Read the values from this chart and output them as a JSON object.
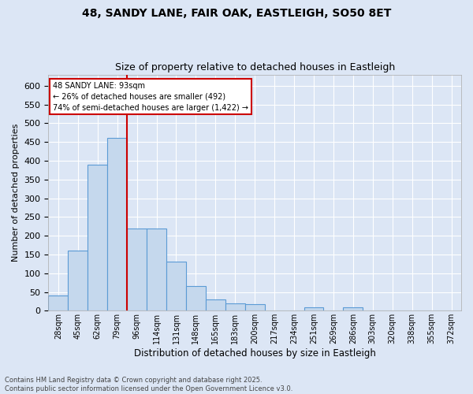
{
  "title1": "48, SANDY LANE, FAIR OAK, EASTLEIGH, SO50 8ET",
  "title2": "Size of property relative to detached houses in Eastleigh",
  "xlabel": "Distribution of detached houses by size in Eastleigh",
  "ylabel": "Number of detached properties",
  "categories": [
    "28sqm",
    "45sqm",
    "62sqm",
    "79sqm",
    "96sqm",
    "114sqm",
    "131sqm",
    "148sqm",
    "165sqm",
    "183sqm",
    "200sqm",
    "217sqm",
    "234sqm",
    "251sqm",
    "269sqm",
    "286sqm",
    "303sqm",
    "320sqm",
    "338sqm",
    "355sqm",
    "372sqm"
  ],
  "values": [
    40,
    160,
    390,
    460,
    220,
    220,
    130,
    65,
    30,
    20,
    18,
    0,
    0,
    8,
    0,
    8,
    0,
    0,
    0,
    0,
    0
  ],
  "bar_color": "#c5d8ed",
  "bar_edge_color": "#5b9bd5",
  "bg_color": "#dce6f5",
  "grid_color": "#ffffff",
  "annotation_line1": "48 SANDY LANE: 93sqm",
  "annotation_line2": "← 26% of detached houses are smaller (492)",
  "annotation_line3": "74% of semi-detached houses are larger (1,422) →",
  "annotation_box_color": "#ffffff",
  "annotation_box_edge": "#cc0000",
  "vline_color": "#cc0000",
  "vline_index": 4,
  "footer_text": "Contains HM Land Registry data © Crown copyright and database right 2025.\nContains public sector information licensed under the Open Government Licence v3.0.",
  "ylim": [
    0,
    630
  ],
  "yticks": [
    0,
    50,
    100,
    150,
    200,
    250,
    300,
    350,
    400,
    450,
    500,
    550,
    600
  ]
}
